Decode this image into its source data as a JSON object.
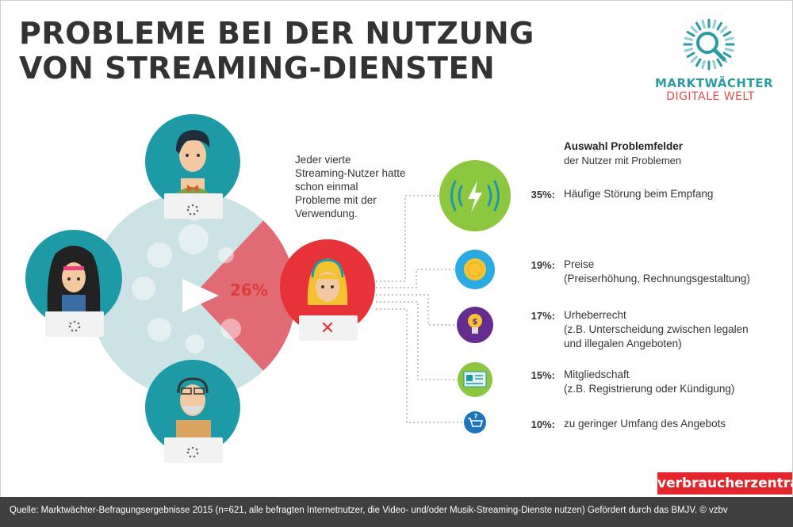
{
  "header": {
    "title_line1": "PROBLEME BEI DER NUTZUNG",
    "title_line2": "VON STREAMING-DIENSTEN"
  },
  "logo": {
    "line1": "MARKTWÄCHTER",
    "line2": "DIGITALE WELT",
    "icon": "magnifier-icon"
  },
  "intro_text": "Jeder vierte Streaming-Nutzer hatte schon einmal Probleme mit der Verwendung.",
  "panel": {
    "title": "Auswahl Problemfelder",
    "subtitle": "der Nutzer mit Problemen"
  },
  "chart_data": [
    {
      "type": "pie",
      "slices": [
        {
          "value": 26,
          "label": "26%",
          "color": "#e06b75"
        },
        {
          "value": 74,
          "color": "#cce3e6"
        }
      ],
      "annotation": "Jeder vierte Streaming-Nutzer hatte schon einmal Probleme mit der Verwendung."
    },
    {
      "type": "bar",
      "title": "Auswahl Problemfelder",
      "subtitle": "der Nutzer mit Problemen",
      "categories": [
        {
          "label": "Häufige Störung beim Empfang",
          "detail": "",
          "value": 35,
          "pct_label": "35%:",
          "icon": "signal-bolt-icon",
          "color": "#8dc63f"
        },
        {
          "label": "Preise",
          "detail": "(Preiserhöhung, Rechnungsgestaltung)",
          "value": 19,
          "pct_label": "19%:",
          "icon": "coin-icon",
          "color": "#29abe2"
        },
        {
          "label": "Urheberrecht",
          "detail": "(z.B. Unterscheidung zwischen legalen und illegalen Angeboten)",
          "value": 17,
          "pct_label": "17%:",
          "icon": "lightbulb-icon",
          "color": "#662d91"
        },
        {
          "label": "Mitgliedschaft",
          "detail": "(z.B. Registrierung oder Kündigung)",
          "value": 15,
          "pct_label": "15%:",
          "icon": "id-card-icon",
          "color": "#8dc63f"
        },
        {
          "label": "zu geringer Umfang des Angebots",
          "detail": "",
          "value": 10,
          "pct_label": "10%:",
          "icon": "cart-icon",
          "color": "#1c75bc"
        }
      ]
    }
  ],
  "brand": "verbraucherzentrale",
  "footer": {
    "source": "Quelle: Marktwächter-Befragungsergebnisse 2015 (n=621, alle befragten Internetnutzer, die Video- und/oder Musik-Streaming-Dienste nutzen) Gefördert durch das BMJV. © vzbv"
  },
  "colors": {
    "teal": "#1d9aa5",
    "red": "#e8323a",
    "pie_base": "#cce3e6",
    "pie_highlight": "#e06b75",
    "text": "#333333",
    "footer_bg": "#404040"
  }
}
